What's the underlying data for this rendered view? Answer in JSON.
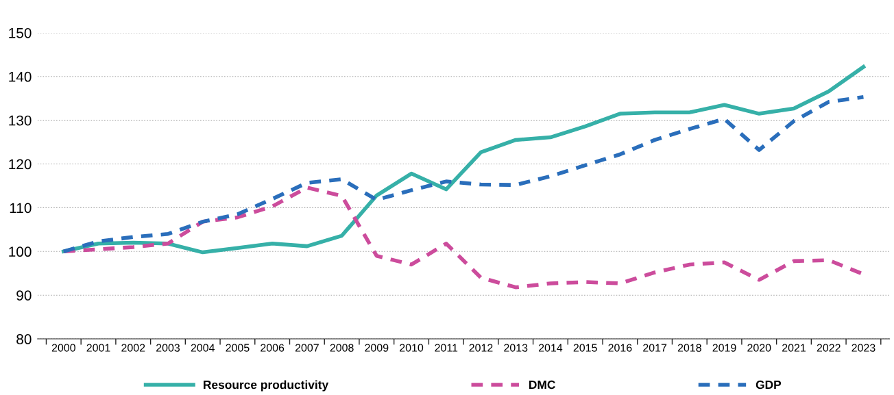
{
  "chart_data": {
    "type": "line",
    "categories": [
      "2000",
      "2001",
      "2002",
      "2003",
      "2004",
      "2005",
      "2006",
      "2007",
      "2008",
      "2009",
      "2010",
      "2011",
      "2012",
      "2013",
      "2014",
      "2015",
      "2016",
      "2017",
      "2018",
      "2019",
      "2020",
      "2021",
      "2022",
      "2023"
    ],
    "series": [
      {
        "name": "Resource productivity",
        "color": "#36b0a8",
        "line_style": "solid",
        "values": [
          100,
          101.8,
          102,
          101.8,
          99.8,
          100.8,
          101.8,
          101.2,
          103.6,
          112.8,
          117.8,
          114.2,
          122.7,
          125.5,
          126.1,
          128.6,
          131.5,
          131.8,
          131.8,
          133.5,
          131.5,
          132.7,
          136.6,
          142.2
        ]
      },
      {
        "name": "DMC",
        "color": "#cc4c9c",
        "line_style": "dashed",
        "values": [
          100,
          100.5,
          101,
          101.8,
          106.8,
          107.8,
          110.3,
          114.6,
          112.7,
          99,
          97,
          101.8,
          94,
          91.8,
          92.7,
          93,
          92.7,
          95.2,
          97,
          97.5,
          93.5,
          97.8,
          98,
          94.8
        ]
      },
      {
        "name": "GDP",
        "color": "#2a6ebb",
        "line_style": "dashed",
        "values": [
          100,
          102.3,
          103.3,
          104,
          106.8,
          108.5,
          112,
          115.7,
          116.5,
          111.8,
          114,
          116,
          115.3,
          115.2,
          117.2,
          119.7,
          122.2,
          125.5,
          128,
          130.3,
          123.2,
          129.8,
          134.2,
          135.3
        ]
      }
    ],
    "ylim": [
      80,
      150
    ],
    "yticks": [
      80,
      90,
      100,
      110,
      120,
      130,
      140,
      150
    ],
    "grid": "y",
    "legend": "bottom",
    "marker": "none"
  }
}
